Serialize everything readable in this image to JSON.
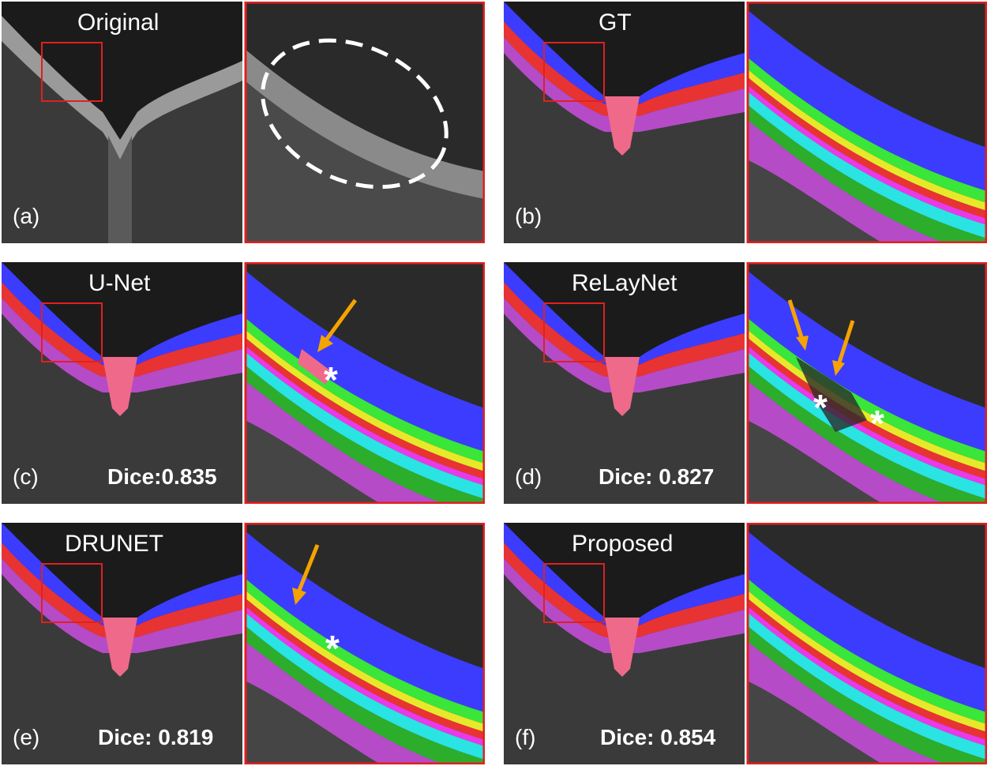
{
  "colors": {
    "background": "#1c1c1c",
    "frame": "#e02020",
    "arrow": "#f5a300",
    "layers": [
      "#3c3cff",
      "#39e639",
      "#e8e82a",
      "#e83333",
      "#e83ae8",
      "#2ae3e3",
      "#2cae2c",
      "#b64bc8"
    ],
    "optic_disc": "#ef6a8a"
  },
  "panels": [
    {
      "id": "a",
      "title": "Original",
      "letter": "(a)",
      "dice": "",
      "segmented": false
    },
    {
      "id": "b",
      "title": "GT",
      "letter": "(b)",
      "dice": "",
      "segmented": true
    },
    {
      "id": "c",
      "title": "U-Net",
      "letter": "(c)",
      "dice": "Dice:0.835",
      "segmented": true
    },
    {
      "id": "d",
      "title": "ReLayNet",
      "letter": "(d)",
      "dice": "Dice: 0.827",
      "segmented": true
    },
    {
      "id": "e",
      "title": "DRUNET",
      "letter": "(e)",
      "dice": "Dice: 0.819",
      "segmented": true
    },
    {
      "id": "f",
      "title": "Proposed",
      "letter": "(f)",
      "dice": "Dice: 0.854",
      "segmented": true
    }
  ]
}
